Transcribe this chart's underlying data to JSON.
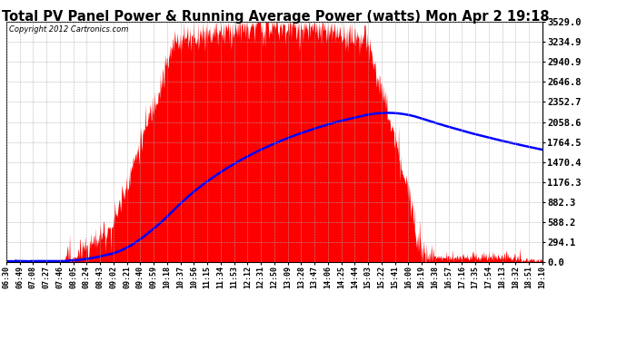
{
  "title": "Total PV Panel Power & Running Average Power (watts) Mon Apr 2 19:18",
  "copyright": "Copyright 2012 Cartronics.com",
  "background_color": "#ffffff",
  "plot_bg_color": "#ffffff",
  "grid_color": "#aaaaaa",
  "ytick_labels": [
    "0.0",
    "294.1",
    "588.2",
    "882.3",
    "1176.3",
    "1470.4",
    "1764.5",
    "2058.6",
    "2352.7",
    "2646.8",
    "2940.9",
    "3234.9",
    "3529.0"
  ],
  "ytick_values": [
    0.0,
    294.1,
    588.2,
    882.3,
    1176.3,
    1470.4,
    1764.5,
    2058.6,
    2352.7,
    2646.8,
    2940.9,
    3234.9,
    3529.0
  ],
  "ymax": 3529.0,
  "ymin": 0.0,
  "fill_color": "#ff0000",
  "avg_line_color": "#0000ff",
  "xtick_labels": [
    "06:30",
    "06:49",
    "07:08",
    "07:27",
    "07:46",
    "08:05",
    "08:24",
    "08:43",
    "09:02",
    "09:21",
    "09:40",
    "09:59",
    "10:18",
    "10:37",
    "10:56",
    "11:15",
    "11:34",
    "11:53",
    "12:12",
    "12:31",
    "12:50",
    "13:09",
    "13:28",
    "13:47",
    "14:06",
    "14:25",
    "14:44",
    "15:03",
    "15:22",
    "15:41",
    "16:00",
    "16:19",
    "16:38",
    "16:57",
    "17:16",
    "17:35",
    "17:54",
    "18:13",
    "18:32",
    "18:51",
    "19:10"
  ],
  "title_fontsize": 10.5,
  "copyright_fontsize": 6,
  "ytick_fontsize": 7.5,
  "xtick_fontsize": 6.0
}
